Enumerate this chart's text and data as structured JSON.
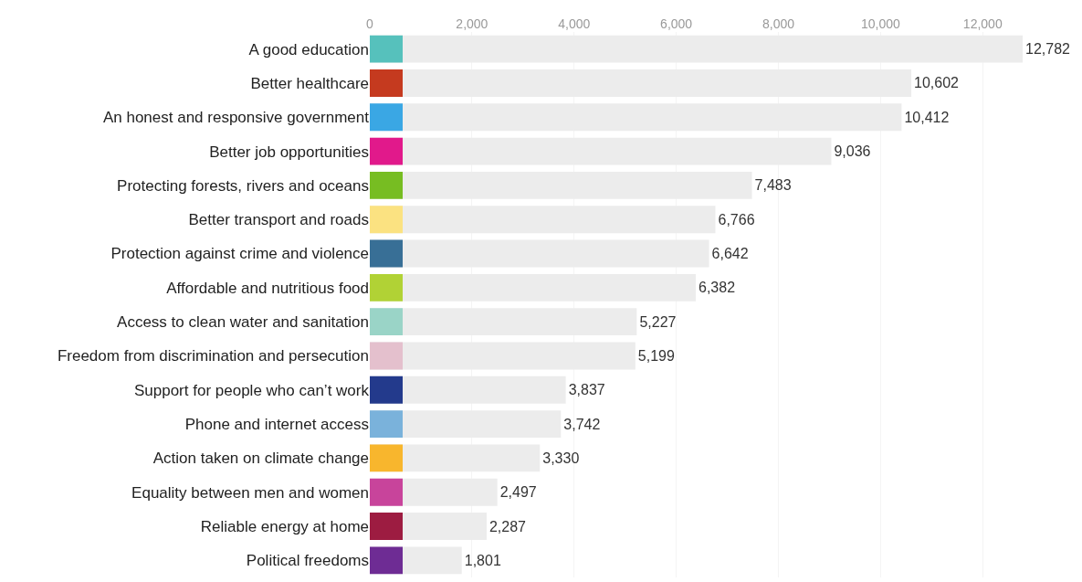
{
  "chart_data": {
    "type": "bar",
    "orientation": "horizontal",
    "categories": [
      "A good education",
      "Better healthcare",
      "An honest and responsive government",
      "Better job opportunities",
      "Protecting forests, rivers and oceans",
      "Better transport and roads",
      "Protection against crime and violence",
      "Affordable and nutritious food",
      "Access to clean water and sanitation",
      "Freedom from discrimination and persecution",
      "Support for people who can’t work",
      "Phone and internet access",
      "Action taken on climate change",
      "Equality between men and women",
      "Reliable energy at home",
      "Political freedoms"
    ],
    "values": [
      12782,
      10602,
      10412,
      9036,
      7483,
      6766,
      6642,
      6382,
      5227,
      5199,
      3837,
      3742,
      3330,
      2497,
      2287,
      1801
    ],
    "color": "#ececec",
    "value_labels": [
      "12,782",
      "10,602",
      "10,412",
      "9,036",
      "7,483",
      "6,766",
      "6,642",
      "6,382",
      "5,227",
      "5,199",
      "3,837",
      "3,742",
      "3,330",
      "2,497",
      "2,287",
      "1,801"
    ],
    "xlim": [
      0,
      12782
    ],
    "xticks": [
      0,
      {
        "value": 2000,
        "label": "2,000"
      },
      {
        "value": 4000,
        "label": "4,000"
      },
      {
        "value": 6000,
        "label": "6,000"
      },
      {
        "value": 8000,
        "label": "8,000"
      },
      {
        "value": 10000,
        "label": "10,000"
      },
      {
        "value": 12000,
        "label": "12,000"
      }
    ],
    "grid": "x",
    "legend": false
  }
}
